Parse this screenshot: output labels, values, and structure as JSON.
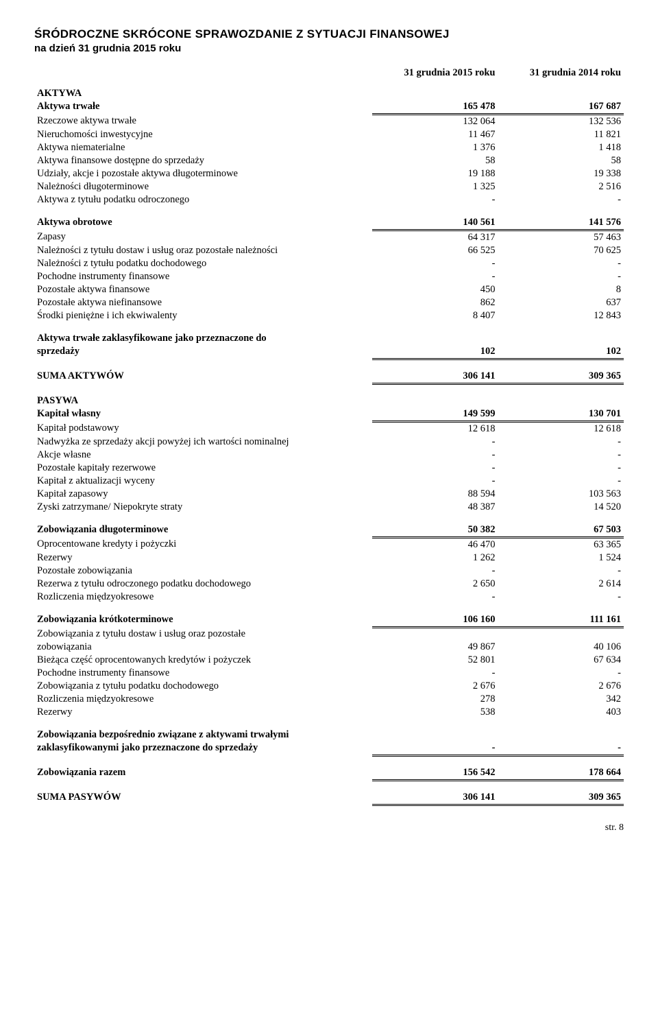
{
  "title_line1": "ŚRÓDROCZNE SKRÓCONE SPRAWOZDANIE Z SYTUACJI FINANSOWEJ",
  "title_line2": "na dzień 31 grudnia 2015 roku",
  "col1": "31 grudnia 2015 roku",
  "col2": "31 grudnia 2014 roku",
  "footer": "str. 8",
  "rows": [
    {
      "l": "AKTYWA",
      "v1": "",
      "v2": "",
      "bold": true
    },
    {
      "l": "Aktywa trwałe",
      "v1": "165 478",
      "v2": "167 687",
      "bold": true,
      "dbl": true
    },
    {
      "l": "Rzeczowe aktywa trwałe",
      "v1": "132 064",
      "v2": "132 536"
    },
    {
      "l": "Nieruchomości inwestycyjne",
      "v1": "11 467",
      "v2": "11 821"
    },
    {
      "l": "Aktywa niematerialne",
      "v1": "1 376",
      "v2": "1 418"
    },
    {
      "l": "Aktywa finansowe dostępne do sprzedaży",
      "v1": "58",
      "v2": "58"
    },
    {
      "l": "Udziały, akcje i pozostałe aktywa długoterminowe",
      "v1": "19 188",
      "v2": "19 338"
    },
    {
      "l": "Należności długoterminowe",
      "v1": "1 325",
      "v2": "2 516"
    },
    {
      "l": "Aktywa z tytułu podatku odroczonego",
      "v1": "-",
      "v2": "-"
    },
    {
      "spacer": true
    },
    {
      "l": "Aktywa obrotowe",
      "v1": "140 561",
      "v2": "141 576",
      "bold": true,
      "dbl": true
    },
    {
      "l": "Zapasy",
      "v1": "64 317",
      "v2": "57 463"
    },
    {
      "l": "Należności z tytułu dostaw i usług oraz pozostałe należności",
      "v1": "66 525",
      "v2": "70 625"
    },
    {
      "l": "Należności z tytułu podatku dochodowego",
      "v1": "-",
      "v2": "-"
    },
    {
      "l": "Pochodne instrumenty finansowe",
      "v1": "-",
      "v2": "-"
    },
    {
      "l": "Pozostałe aktywa finansowe",
      "v1": "450",
      "v2": "8"
    },
    {
      "l": "Pozostałe aktywa niefinansowe",
      "v1": "862",
      "v2": "637"
    },
    {
      "l": "Środki pieniężne i ich ekwiwalenty",
      "v1": "8 407",
      "v2": "12 843"
    },
    {
      "spacer": true
    },
    {
      "l": "Aktywa trwałe zaklasyfikowane jako przeznaczone do",
      "v1": "",
      "v2": "",
      "bold": true
    },
    {
      "l": "sprzedaży",
      "v1": "102",
      "v2": "102",
      "bold": true,
      "dbl": true
    },
    {
      "spacer": true
    },
    {
      "l": "SUMA AKTYWÓW",
      "v1": "306 141",
      "v2": "309 365",
      "bold": true,
      "dbl": true
    },
    {
      "spacer": true
    },
    {
      "l": "PASYWA",
      "v1": "",
      "v2": "",
      "bold": true
    },
    {
      "l": "Kapitał własny",
      "v1": "149 599",
      "v2": "130 701",
      "bold": true,
      "dbl": true
    },
    {
      "l": "Kapitał podstawowy",
      "v1": "12 618",
      "v2": "12 618"
    },
    {
      "l": "Nadwyżka ze sprzedaży akcji powyżej ich wartości nominalnej",
      "v1": "-",
      "v2": "-"
    },
    {
      "l": "Akcje własne",
      "v1": "-",
      "v2": "-"
    },
    {
      "l": "Pozostałe kapitały rezerwowe",
      "v1": "-",
      "v2": "-"
    },
    {
      "l": "Kapitał z aktualizacji wyceny",
      "v1": "-",
      "v2": "-"
    },
    {
      "l": "Kapitał zapasowy",
      "v1": "88 594",
      "v2": "103 563"
    },
    {
      "l": "Zyski zatrzymane/ Niepokryte straty",
      "v1": "48 387",
      "v2": "14 520"
    },
    {
      "spacer": true
    },
    {
      "l": "Zobowiązania długoterminowe",
      "v1": "50 382",
      "v2": "67 503",
      "bold": true,
      "dbl": true
    },
    {
      "l": "Oprocentowane kredyty i pożyczki",
      "v1": "46 470",
      "v2": "63 365"
    },
    {
      "l": "Rezerwy",
      "v1": "1 262",
      "v2": "1 524"
    },
    {
      "l": "Pozostałe zobowiązania",
      "v1": "-",
      "v2": "-"
    },
    {
      "l": "Rezerwa z tytułu odroczonego podatku dochodowego",
      "v1": "2 650",
      "v2": "2 614"
    },
    {
      "l": "Rozliczenia międzyokresowe",
      "v1": "-",
      "v2": "-"
    },
    {
      "spacer": true
    },
    {
      "l": "Zobowiązania krótkoterminowe",
      "v1": "106 160",
      "v2": "111 161",
      "bold": true,
      "dbl": true
    },
    {
      "l": "Zobowiązania z tytułu dostaw i usług oraz pozostałe",
      "v1": "",
      "v2": ""
    },
    {
      "l": "zobowiązania",
      "v1": "49 867",
      "v2": "40 106"
    },
    {
      "l": "Bieżąca część oprocentowanych kredytów i pożyczek",
      "v1": "52 801",
      "v2": "67 634"
    },
    {
      "l": "Pochodne instrumenty finansowe",
      "v1": "-",
      "v2": "-"
    },
    {
      "l": "Zobowiązania z tytułu podatku dochodowego",
      "v1": "2 676",
      "v2": "2 676"
    },
    {
      "l": "Rozliczenia międzyokresowe",
      "v1": "278",
      "v2": "342"
    },
    {
      "l": "Rezerwy",
      "v1": "538",
      "v2": "403"
    },
    {
      "spacer": true
    },
    {
      "l": "Zobowiązania bezpośrednio związane z aktywami trwałymi",
      "v1": "",
      "v2": "",
      "bold": true
    },
    {
      "l": "zaklasyfikowanymi jako przeznaczone do sprzedaży",
      "v1": "-",
      "v2": "-",
      "bold": true,
      "dbl": true
    },
    {
      "spacer": true
    },
    {
      "l": "Zobowiązania razem",
      "v1": "156 542",
      "v2": "178 664",
      "bold": true,
      "dbl": true
    },
    {
      "spacer": true
    },
    {
      "l": "SUMA PASYWÓW",
      "v1": "306 141",
      "v2": "309 365",
      "bold": true,
      "dbl": true
    }
  ]
}
